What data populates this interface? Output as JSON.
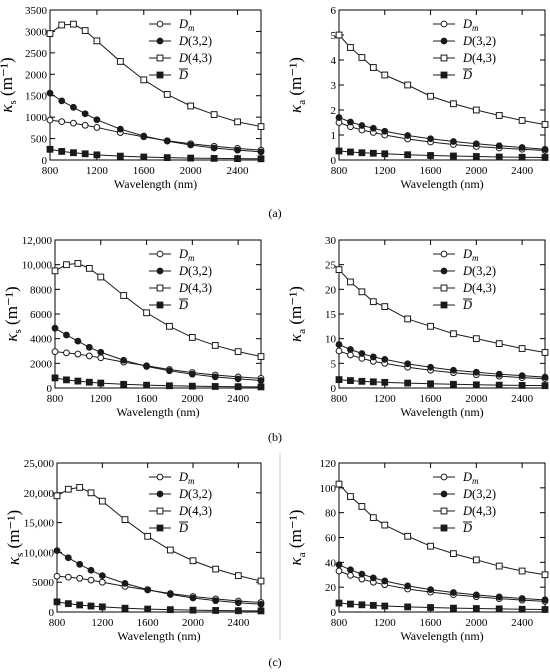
{
  "panel_labels": [
    "(a)",
    "(b)",
    "(c)"
  ],
  "legend": [
    "D_m",
    "D(3,2)",
    "D(4,3)",
    "D̄"
  ],
  "legend_text": {
    "dm_main": "D",
    "dm_sub": "m",
    "d32_main": "D",
    "d32_rest": "(3,2)",
    "d43_main": "D",
    "d43_rest": "(4,3)",
    "dbar_main": "D"
  },
  "colors": {
    "axis": "#000000",
    "series": "#1a1a1a",
    "divider": "#c8c8c8"
  },
  "ylabel_text": {
    "kappa": "κ",
    "sub_s": "s",
    "sub_a": "a",
    "unit": " (m⁻¹)"
  },
  "chart_data": [
    {
      "type": "line",
      "panel": "(a)",
      "quantity": "scattering",
      "xlabel": "Wavelength (nm)",
      "ylabel": "κs (m⁻¹)",
      "xlim": [
        800,
        2600
      ],
      "ylim": [
        0,
        3500
      ],
      "xticks": [
        800,
        1200,
        1600,
        2000,
        2400
      ],
      "yticks": [
        0,
        500,
        1000,
        1500,
        2000,
        2500,
        3000,
        3500
      ],
      "ytick_labels": [
        "0",
        "500",
        "1000",
        "1500",
        "2000",
        "2500",
        "3000",
        "3500"
      ],
      "x": [
        800,
        900,
        1000,
        1100,
        1200,
        1400,
        1600,
        1800,
        2000,
        2200,
        2400,
        2600
      ],
      "series": [
        {
          "name": "D_m",
          "marker": "open-circle",
          "values": [
            930,
            895,
            860,
            810,
            760,
            640,
            540,
            450,
            380,
            320,
            270,
            230
          ]
        },
        {
          "name": "D(3,2)",
          "marker": "filled-circle",
          "values": [
            1560,
            1380,
            1230,
            1080,
            940,
            720,
            560,
            440,
            350,
            280,
            230,
            190
          ]
        },
        {
          "name": "D(4,3)",
          "marker": "open-square",
          "values": [
            2950,
            3150,
            3170,
            3020,
            2780,
            2300,
            1870,
            1530,
            1260,
            1060,
            890,
            780
          ]
        },
        {
          "name": "D̄",
          "marker": "filled-square",
          "values": [
            250,
            200,
            170,
            145,
            120,
            90,
            70,
            55,
            45,
            38,
            32,
            28
          ]
        }
      ]
    },
    {
      "type": "line",
      "panel": "(a)",
      "quantity": "absorption",
      "xlabel": "Wavelength (nm)",
      "ylabel": "κa (m⁻¹)",
      "xlim": [
        800,
        2600
      ],
      "ylim": [
        0,
        6
      ],
      "xticks": [
        800,
        1200,
        1600,
        2000,
        2400
      ],
      "yticks": [
        0,
        1,
        2,
        3,
        4,
        5,
        6
      ],
      "ytick_labels": [
        "0",
        "1",
        "2",
        "3",
        "4",
        "5",
        "6"
      ],
      "x": [
        800,
        900,
        1000,
        1100,
        1200,
        1400,
        1600,
        1800,
        2000,
        2200,
        2400,
        2600
      ],
      "series": [
        {
          "name": "D_m",
          "marker": "open-circle",
          "values": [
            1.5,
            1.33,
            1.2,
            1.1,
            1.0,
            0.84,
            0.72,
            0.62,
            0.54,
            0.48,
            0.43,
            0.38
          ]
        },
        {
          "name": "D(3,2)",
          "marker": "filled-circle",
          "values": [
            1.7,
            1.52,
            1.38,
            1.27,
            1.15,
            0.98,
            0.85,
            0.74,
            0.65,
            0.57,
            0.5,
            0.43
          ]
        },
        {
          "name": "D(4,3)",
          "marker": "open-square",
          "values": [
            5.0,
            4.5,
            4.1,
            3.7,
            3.4,
            3.0,
            2.55,
            2.25,
            2.0,
            1.78,
            1.58,
            1.42
          ]
        },
        {
          "name": "D̄",
          "marker": "filled-square",
          "values": [
            0.36,
            0.32,
            0.29,
            0.27,
            0.25,
            0.21,
            0.18,
            0.16,
            0.14,
            0.12,
            0.11,
            0.1
          ]
        }
      ]
    },
    {
      "type": "line",
      "panel": "(b)",
      "quantity": "scattering",
      "xlabel": "Wavelength (nm)",
      "ylabel": "κs (m⁻¹)",
      "xlim": [
        800,
        2600
      ],
      "ylim": [
        0,
        12000
      ],
      "xticks": [
        800,
        1200,
        1600,
        2000,
        2400
      ],
      "yticks": [
        0,
        2000,
        4000,
        6000,
        8000,
        10000,
        12000
      ],
      "ytick_labels": [
        "0",
        "2000",
        "4000",
        "6000",
        "8000",
        "10,000",
        "12,000"
      ],
      "x": [
        800,
        900,
        1000,
        1100,
        1200,
        1400,
        1600,
        1800,
        2000,
        2200,
        2400,
        2600
      ],
      "series": [
        {
          "name": "D_m",
          "marker": "open-circle",
          "values": [
            2950,
            2850,
            2750,
            2600,
            2450,
            2100,
            1800,
            1500,
            1250,
            1050,
            900,
            780
          ]
        },
        {
          "name": "D(3,2)",
          "marker": "filled-circle",
          "values": [
            4850,
            4300,
            3800,
            3300,
            2900,
            2250,
            1750,
            1400,
            1120,
            900,
            740,
            610
          ]
        },
        {
          "name": "D(4,3)",
          "marker": "open-square",
          "values": [
            9500,
            10000,
            10100,
            9700,
            9000,
            7500,
            6100,
            5000,
            4100,
            3450,
            2950,
            2550
          ]
        },
        {
          "name": "D̄",
          "marker": "filled-square",
          "values": [
            820,
            660,
            560,
            470,
            400,
            300,
            230,
            180,
            150,
            125,
            105,
            90
          ]
        }
      ]
    },
    {
      "type": "line",
      "panel": "(b)",
      "quantity": "absorption",
      "xlabel": "Wavelength (nm)",
      "ylabel": "κa (m⁻¹)",
      "xlim": [
        800,
        2600
      ],
      "ylim": [
        0,
        30
      ],
      "xticks": [
        800,
        1200,
        1600,
        2000,
        2400
      ],
      "yticks": [
        0,
        5,
        10,
        15,
        20,
        25,
        30
      ],
      "ytick_labels": [
        "0",
        "5",
        "10",
        "15",
        "20",
        "25",
        "30"
      ],
      "x": [
        800,
        900,
        1000,
        1100,
        1200,
        1400,
        1600,
        1800,
        2000,
        2200,
        2400,
        2600
      ],
      "series": [
        {
          "name": "D_m",
          "marker": "open-circle",
          "values": [
            7.5,
            6.7,
            6.0,
            5.4,
            5.0,
            4.2,
            3.6,
            3.1,
            2.7,
            2.4,
            2.1,
            1.9
          ]
        },
        {
          "name": "D(3,2)",
          "marker": "filled-circle",
          "values": [
            8.8,
            7.8,
            7.0,
            6.3,
            5.8,
            4.9,
            4.2,
            3.6,
            3.2,
            2.8,
            2.5,
            2.2
          ]
        },
        {
          "name": "D(4,3)",
          "marker": "open-square",
          "values": [
            24,
            21.5,
            19.5,
            17.5,
            16.5,
            14,
            12.5,
            11,
            10,
            9,
            8,
            7.2
          ]
        },
        {
          "name": "D̄",
          "marker": "filled-square",
          "values": [
            1.7,
            1.5,
            1.35,
            1.25,
            1.15,
            1.0,
            0.85,
            0.75,
            0.65,
            0.58,
            0.52,
            0.47
          ]
        }
      ]
    },
    {
      "type": "line",
      "panel": "(c)",
      "quantity": "scattering",
      "xlabel": "Wavelength (nm)",
      "ylabel": "κs (m⁻¹)",
      "xlim": [
        800,
        2600
      ],
      "ylim": [
        0,
        25000
      ],
      "xticks": [
        800,
        1200,
        1600,
        2000,
        2400
      ],
      "yticks": [
        0,
        5000,
        10000,
        15000,
        20000,
        25000
      ],
      "ytick_labels": [
        "0",
        "5000",
        "10,000",
        "15,000",
        "20,000",
        "25,000"
      ],
      "x": [
        800,
        900,
        1000,
        1100,
        1200,
        1400,
        1600,
        1800,
        2000,
        2200,
        2400,
        2600
      ],
      "series": [
        {
          "name": "D_m",
          "marker": "open-circle",
          "values": [
            6000,
            5850,
            5650,
            5350,
            5000,
            4300,
            3700,
            3100,
            2600,
            2200,
            1850,
            1600
          ]
        },
        {
          "name": "D(3,2)",
          "marker": "filled-circle",
          "values": [
            10300,
            9100,
            8000,
            7000,
            6100,
            4800,
            3750,
            2950,
            2350,
            1900,
            1550,
            1300
          ]
        },
        {
          "name": "D(4,3)",
          "marker": "open-square",
          "values": [
            19500,
            20600,
            20900,
            20000,
            18600,
            15500,
            12700,
            10400,
            8600,
            7200,
            6100,
            5200
          ]
        },
        {
          "name": "D̄",
          "marker": "filled-square",
          "values": [
            1700,
            1400,
            1180,
            1000,
            860,
            640,
            490,
            390,
            310,
            260,
            215,
            185
          ]
        }
      ]
    },
    {
      "type": "line",
      "panel": "(c)",
      "quantity": "absorption",
      "xlabel": "Wavelength (nm)",
      "ylabel": "κa (m⁻¹)",
      "xlim": [
        800,
        2600
      ],
      "ylim": [
        0,
        120
      ],
      "xticks": [
        800,
        1200,
        1600,
        2000,
        2400
      ],
      "yticks": [
        0,
        20,
        40,
        60,
        80,
        100,
        120
      ],
      "ytick_labels": [
        "0",
        "20",
        "40",
        "60",
        "80",
        "100",
        "120"
      ],
      "x": [
        800,
        900,
        1000,
        1100,
        1200,
        1400,
        1600,
        1800,
        2000,
        2200,
        2400,
        2600
      ],
      "series": [
        {
          "name": "D_m",
          "marker": "open-circle",
          "values": [
            33,
            29.5,
            26.5,
            24,
            22,
            18.5,
            16,
            14,
            12.3,
            10.8,
            9.6,
            8.6
          ]
        },
        {
          "name": "D(3,2)",
          "marker": "filled-circle",
          "values": [
            38,
            34,
            30.5,
            27.5,
            25,
            21,
            18,
            15.7,
            13.8,
            12.2,
            10.9,
            9.8
          ]
        },
        {
          "name": "D(4,3)",
          "marker": "open-square",
          "values": [
            103,
            93,
            85,
            76,
            70,
            61,
            53,
            47,
            42,
            37,
            33,
            30
          ]
        },
        {
          "name": "D̄",
          "marker": "filled-square",
          "values": [
            7.2,
            6.4,
            5.8,
            5.3,
            4.8,
            4.1,
            3.6,
            3.1,
            2.8,
            2.5,
            2.2,
            2.0
          ]
        }
      ]
    }
  ]
}
